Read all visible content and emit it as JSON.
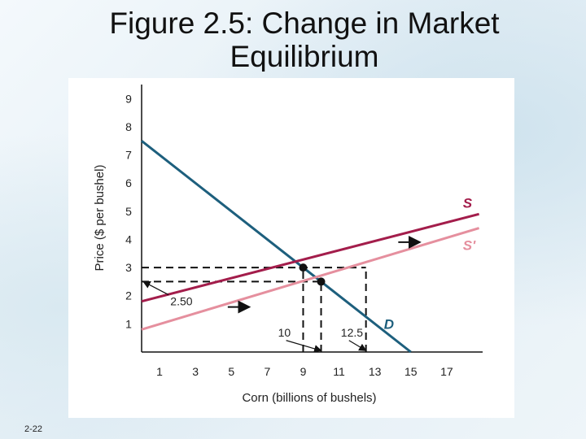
{
  "slide": {
    "title": "Figure 2.5: Change in Market Equilibrium",
    "number": "2-22"
  },
  "chart_data": {
    "type": "line",
    "title": "Figure 2.5: Change in Market Equilibrium",
    "xlabel": "Corn (billions of bushels)",
    "ylabel": "Price ($ per bushel)",
    "xlim": [
      0,
      19
    ],
    "ylim": [
      0,
      9.5
    ],
    "xticks": [
      1,
      3,
      5,
      7,
      9,
      11,
      13,
      15,
      17
    ],
    "yticks": [
      1,
      2,
      3,
      4,
      5,
      6,
      7,
      8,
      9
    ],
    "grid": false,
    "series": [
      {
        "name": "D",
        "color": "#1d5f7d",
        "x": [
          0,
          15
        ],
        "y": [
          7.5,
          0
        ]
      },
      {
        "name": "S",
        "color": "#a31d4b",
        "x": [
          0,
          18.8
        ],
        "y": [
          1.8,
          4.9
        ]
      },
      {
        "name": "S'",
        "color": "#e58f9e",
        "x": [
          0,
          18.8
        ],
        "y": [
          0.8,
          4.4
        ]
      }
    ],
    "equilibria": [
      {
        "x": 9,
        "y": 3
      },
      {
        "x": 10,
        "y": 2.5
      }
    ],
    "guides": [
      {
        "type": "h",
        "y": 3,
        "x_to": 12.5
      },
      {
        "type": "h",
        "y": 2.5,
        "x_to": 10
      },
      {
        "type": "v",
        "x": 9,
        "y_to": 3
      },
      {
        "type": "v",
        "x": 10,
        "y_to": 2.5
      },
      {
        "type": "v",
        "x": 12.5,
        "y_to": 3
      }
    ],
    "annotations": [
      {
        "text": "2.50",
        "x": 1.6,
        "y": 1.8,
        "arrow_to": {
          "x": 0.1,
          "y": 2.5
        }
      },
      {
        "text": "10",
        "x": 7.6,
        "y": 0.7,
        "arrow_to": {
          "x": 10,
          "y": 0.05
        }
      },
      {
        "text": "12.5",
        "x": 11.1,
        "y": 0.7,
        "arrow_to": {
          "x": 12.5,
          "y": 0.05
        }
      }
    ],
    "series_labels": [
      {
        "text": "S",
        "x": 17.9,
        "y": 5.3
      },
      {
        "text": "S'",
        "x": 17.9,
        "y": 3.8
      },
      {
        "text": "D",
        "x": 13.5,
        "y": 1.0
      }
    ],
    "shift_arrows": [
      {
        "from": {
          "x": 14.3,
          "y": 3.9
        },
        "to": {
          "x": 15.5,
          "y": 3.9
        }
      },
      {
        "from": {
          "x": 4.8,
          "y": 1.6
        },
        "to": {
          "x": 6.0,
          "y": 1.6
        }
      }
    ]
  }
}
